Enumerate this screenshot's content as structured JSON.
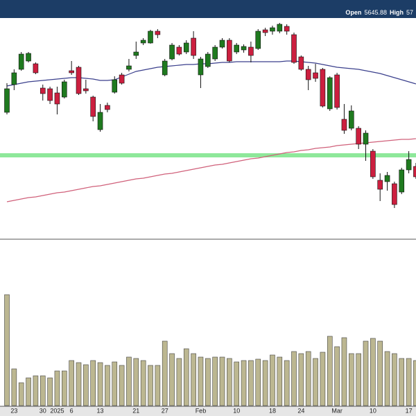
{
  "chart_data": {
    "type": "candlestick",
    "header": [
      "Open",
      5645.88,
      "High",
      "57"
    ],
    "categories": [
      null,
      "23",
      null,
      null,
      null,
      "30",
      null,
      "2025",
      null,
      "6",
      null,
      null,
      null,
      "13",
      null,
      null,
      null,
      null,
      "21",
      null,
      null,
      null,
      "27",
      null,
      null,
      null,
      null,
      "Feb",
      null,
      null,
      null,
      null,
      "10",
      null,
      null,
      null,
      null,
      "18",
      null,
      null,
      null,
      "24",
      null,
      null,
      null,
      null,
      "Mar",
      null,
      null,
      null,
      null,
      "10",
      null,
      null,
      null,
      null,
      "17",
      null
    ],
    "open": [
      5795,
      5895,
      5950,
      5980,
      5970,
      5882.5,
      5880,
      5865,
      5850,
      5945,
      5957.5,
      5880,
      5850,
      5732.5,
      5820,
      5867.5,
      5930,
      5950,
      6000,
      6045,
      6045,
      6087.5,
      5930,
      5987.5,
      6030,
      6012.5,
      6062.5,
      5930,
      5960,
      5987.5,
      6030,
      6055,
      6012.5,
      6020,
      6030,
      6025,
      6092.5,
      6087.5,
      6087.5,
      6105,
      6075,
      5995,
      5950,
      5937.5,
      5950,
      5807.5,
      5930,
      5770,
      5737.5,
      5737.5,
      5680,
      5655,
      5550,
      5545,
      5537.5,
      5507.5,
      5587.5,
      5600
    ],
    "high": [
      5900,
      5950,
      6012.5,
      6012.5,
      5975,
      5895,
      5887.5,
      5887.5,
      5912.5,
      5980,
      5962.5,
      5912.5,
      5855,
      5825,
      5830,
      5925,
      5937.5,
      5987.5,
      6050,
      6062.5,
      6092.5,
      6095,
      5987.5,
      6045,
      6037.5,
      6055,
      6087.5,
      5995,
      6012.5,
      6037.5,
      6062.5,
      6062.5,
      6045,
      6040,
      6050,
      6095,
      6100,
      6107.5,
      6117.5,
      6112.5,
      6082.5,
      6000,
      5962.5,
      5970,
      5955,
      5925,
      5937.5,
      5825,
      5820,
      5745,
      5730,
      5662.5,
      5575,
      5580,
      5545,
      5595,
      5655,
      5612.5
    ],
    "low": [
      5787.5,
      5875,
      5945,
      5975,
      5932.5,
      5837.5,
      5825,
      5787.5,
      5845,
      5930,
      5857.5,
      5862.5,
      5762.5,
      5725,
      5795,
      5862.5,
      5895,
      5942.5,
      5987.5,
      6037.5,
      6042.5,
      6062.5,
      5925,
      5982.5,
      6000,
      6005,
      5987.5,
      5882.5,
      5955,
      5980,
      6025,
      5975,
      6005,
      6010,
      5975,
      6020,
      6070,
      6075,
      6080,
      6075,
      5970,
      5945,
      5875,
      5905,
      5812.5,
      5800,
      5805,
      5717.5,
      5730,
      5662.5,
      5620,
      5555,
      5475,
      5512.5,
      5450,
      5500,
      5575,
      5555
    ],
    "close": [
      5880,
      5937.5,
      6005,
      6007.5,
      5937.5,
      5862.5,
      5837.5,
      5825,
      5905,
      5937.5,
      5862.5,
      5872.5,
      5780,
      5795,
      5805,
      5912.5,
      5900,
      5962.5,
      6012.5,
      6055,
      6087.5,
      6075,
      5980,
      6037.5,
      6005,
      6045,
      6000,
      5987.5,
      6005,
      6030,
      6055,
      5980,
      6037.5,
      6032.5,
      6000,
      6087.5,
      6082.5,
      6100,
      6112.5,
      6087.5,
      5975,
      5950,
      5912.5,
      5917.5,
      5817.5,
      5920,
      5812.5,
      5730,
      5800,
      5680,
      5720,
      5562.5,
      5517.5,
      5567.5,
      5462.5,
      5587.5,
      5625,
      5562.5
    ],
    "up_color": "#1f7a1f",
    "down_color": "#cc1f3f",
    "lines": [
      {
        "color": "#3a3f8c",
        "values": [
          5890,
          5895,
          5900,
          5905,
          5907.5,
          5910,
          5912.5,
          5915,
          5917.5,
          5920,
          5920,
          5917.5,
          5915,
          5910,
          5910,
          5912.5,
          5922.5,
          5932.5,
          5942.5,
          5947.5,
          5952.5,
          5957.5,
          5960,
          5962.5,
          5965,
          5967.5,
          5967.5,
          5970,
          5970,
          5972.5,
          5975,
          5975,
          5977.5,
          5977.5,
          5977.5,
          5977.5,
          5977.5,
          5977.5,
          5977.5,
          5980,
          5980,
          5977.5,
          5975,
          5972.5,
          5967.5,
          5962.5,
          5957.5,
          5955,
          5952.5,
          5950,
          5945,
          5940,
          5935,
          5927.5,
          5920,
          5912.5,
          5905,
          5897.5
        ]
      },
      {
        "color": "#d0607a",
        "values": [
          5472.5,
          5477.5,
          5482.5,
          5487.5,
          5490,
          5495,
          5500,
          5505,
          5507.5,
          5512.5,
          5517.5,
          5522.5,
          5527.5,
          5530,
          5535,
          5540,
          5545,
          5550,
          5555,
          5557.5,
          5562.5,
          5567.5,
          5572.5,
          5575,
          5580,
          5585,
          5590,
          5595,
          5600,
          5605,
          5607.5,
          5612.5,
          5617.5,
          5622.5,
          5627.5,
          5630,
          5635,
          5640,
          5645,
          5650,
          5652.5,
          5657.5,
          5660,
          5665,
          5667.5,
          5670,
          5675,
          5677.5,
          5680,
          5682.5,
          5685,
          5687.5,
          5690,
          5692.5,
          5695,
          5697.5,
          5697.5,
          5700
        ]
      }
    ],
    "level": 5640,
    "level_color": "#8ee89a",
    "ylim": [
      5340,
      6130
    ],
    "volume": [
      160,
      53,
      33,
      40,
      43,
      43,
      40,
      50,
      50,
      65,
      62,
      59,
      65,
      62,
      58,
      63,
      58,
      70,
      68,
      65,
      58,
      58,
      93,
      75,
      68,
      82,
      75,
      70,
      68,
      70,
      70,
      68,
      63,
      65,
      65,
      67,
      65,
      73,
      70,
      65,
      78,
      75,
      78,
      68,
      77,
      100,
      85,
      98,
      75,
      75,
      93,
      97,
      93,
      78,
      75,
      68,
      68,
      65
    ],
    "volume_color": "#bcb791",
    "volume_ylim": [
      0,
      170
    ]
  }
}
